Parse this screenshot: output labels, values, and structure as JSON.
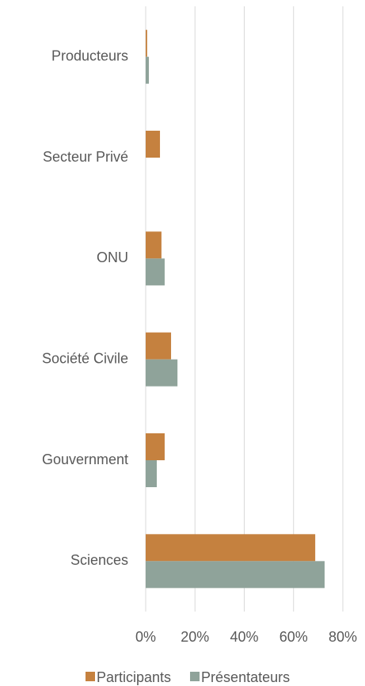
{
  "chart_data": {
    "type": "hbar",
    "categories": [
      "Producteurs",
      "Secteur Privé",
      "ONU",
      "Société Civile",
      "Gouvernment",
      "Sciences"
    ],
    "series": [
      {
        "name": "Participants",
        "color": "#c5813f",
        "values": [
          0.6,
          5.8,
          6.4,
          10.3,
          7.7,
          68.8
        ]
      },
      {
        "name": "Présentateurs",
        "color": "#8fa39a",
        "values": [
          1.3,
          0,
          7.7,
          12.9,
          4.5,
          72.6
        ]
      }
    ],
    "xlim": [
      0,
      80
    ],
    "xticks": [
      {
        "value": 0,
        "label": "0%"
      },
      {
        "value": 20,
        "label": "20%"
      },
      {
        "value": 40,
        "label": "40%"
      },
      {
        "value": 60,
        "label": "60%"
      },
      {
        "value": 80,
        "label": "80%"
      }
    ],
    "grid": true,
    "legend": "bottom"
  }
}
